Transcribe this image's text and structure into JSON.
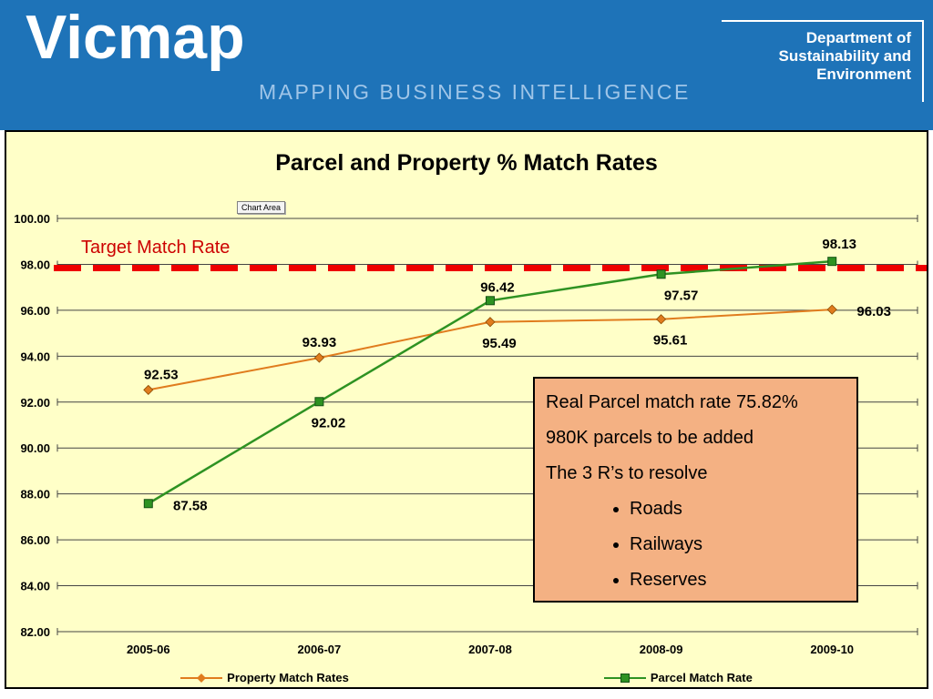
{
  "header": {
    "brand": "Vicmap",
    "subtitle": "MAPPING BUSINESS INTELLIGENCE",
    "department_lines": [
      "Department of",
      "Sustainability and",
      "Environment"
    ],
    "bg_color": "#1E73B8",
    "subtitle_color": "#9FC5E8"
  },
  "chart_data": {
    "type": "line",
    "title": "Parcel and Property % Match Rates",
    "chart_area_label": "Chart Area",
    "categories": [
      "2005-06",
      "2006-07",
      "2007-08",
      "2008-09",
      "2009-10"
    ],
    "series": [
      {
        "name": "Property Match Rates",
        "marker": "diamond",
        "color": "#E07C1E",
        "values": [
          92.53,
          93.93,
          95.49,
          95.61,
          96.03
        ]
      },
      {
        "name": "Parcel Match Rate",
        "marker": "square",
        "color": "#2E9222",
        "values": [
          87.58,
          92.02,
          96.42,
          97.57,
          98.13
        ]
      }
    ],
    "target_line": {
      "label": "Target Match Rate",
      "value": 98.0,
      "line_color": "#EE0000",
      "label_color": "#CC0000",
      "style": "dashed"
    },
    "ylim": [
      82,
      100
    ],
    "ytick_step": 2,
    "grid": true,
    "legend_position": "bottom",
    "plot_bg": "#FFFFC8",
    "xlabel": "",
    "ylabel": ""
  },
  "annotation": {
    "lines": [
      "Real Parcel match rate 75.82%",
      "980K parcels to be added",
      "The 3 R’s to resolve"
    ],
    "bullets": [
      "Roads",
      "Railways",
      "Reserves"
    ],
    "bg_color": "#F4B183"
  }
}
